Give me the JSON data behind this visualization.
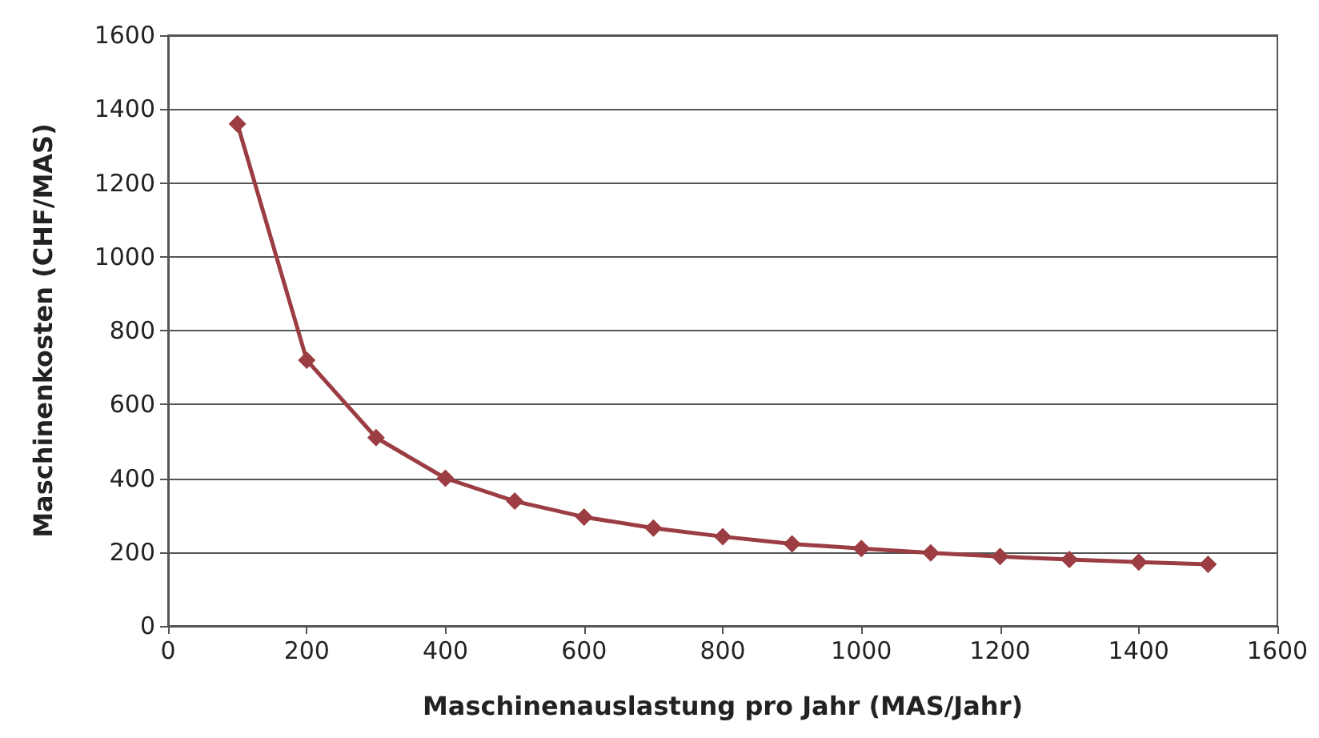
{
  "chart_data": {
    "type": "line",
    "xlabel": "Maschinenauslastung pro Jahr (MAS/Jahr)",
    "ylabel": "Maschinenkosten (CHF/MAS)",
    "x": [
      100,
      200,
      300,
      400,
      500,
      600,
      700,
      800,
      900,
      1000,
      1100,
      1200,
      1300,
      1400,
      1500
    ],
    "series": [
      {
        "color": "#9b3d43",
        "values": [
          1360,
          720,
          510,
          400,
          338,
          295,
          265,
          242,
          222,
          210,
          198,
          188,
          180,
          173,
          167
        ]
      }
    ],
    "xlim": [
      0,
      1600
    ],
    "xticks": [
      0,
      200,
      400,
      600,
      800,
      1000,
      1200,
      1400,
      1600
    ],
    "ylim": [
      0,
      1600
    ],
    "yticks": [
      0,
      200,
      400,
      600,
      800,
      1000,
      1200,
      1400,
      1600
    ],
    "grid": "y",
    "marker": "diamond",
    "line_style": "solid"
  }
}
